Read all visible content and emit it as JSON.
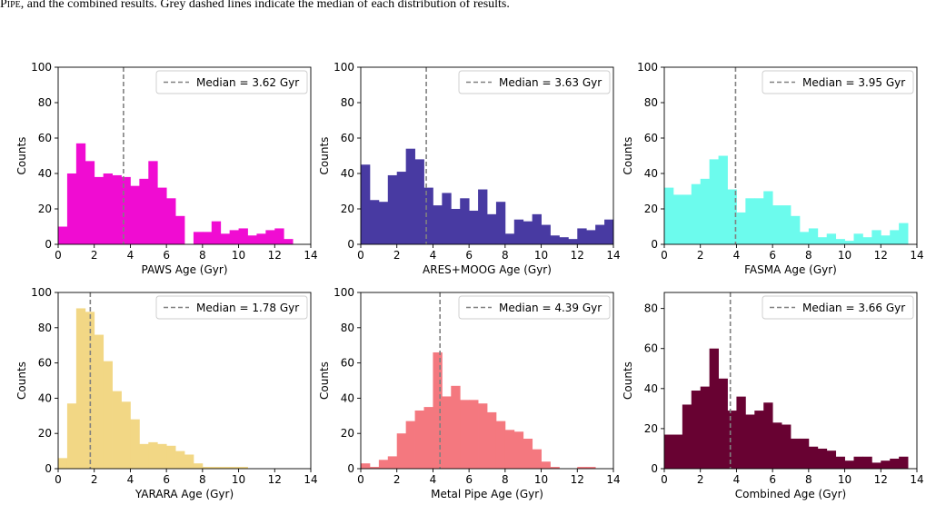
{
  "caption": {
    "lead": "Pipe",
    "rest": ", and the combined results. Grey dashed lines indicate the median of each distribution of results."
  },
  "chart_data": [
    {
      "type": "bar",
      "xlabel": "PAWS Age (Gyr)",
      "ylabel": "Counts",
      "color": "#f00cd2",
      "xlim": [
        0,
        14
      ],
      "ylim": [
        0,
        100
      ],
      "xticks": [
        "0",
        "2",
        "4",
        "6",
        "8",
        "10",
        "12",
        "14"
      ],
      "yticks": [
        "0",
        "20",
        "40",
        "60",
        "80",
        "100"
      ],
      "bin_width": 0.5,
      "bin_start": 0,
      "values": [
        10,
        40,
        57,
        47,
        38,
        40,
        39,
        38,
        33,
        37,
        47,
        32,
        26,
        16,
        0,
        7,
        7,
        13,
        6,
        8,
        9,
        5,
        6,
        8,
        9,
        3
      ],
      "median": 3.62,
      "legend": "Median = 3.62 Gyr"
    },
    {
      "type": "bar",
      "xlabel": "ARES+MOOG Age (Gyr)",
      "ylabel": "Counts",
      "color": "#483aa2",
      "xlim": [
        0,
        14
      ],
      "ylim": [
        0,
        100
      ],
      "xticks": [
        "0",
        "2",
        "4",
        "6",
        "8",
        "10",
        "12",
        "14"
      ],
      "yticks": [
        "0",
        "20",
        "40",
        "60",
        "80",
        "100"
      ],
      "bin_width": 0.5,
      "bin_start": 0,
      "values": [
        45,
        25,
        24,
        39,
        41,
        54,
        48,
        32,
        22,
        29,
        20,
        26,
        19,
        31,
        17,
        24,
        6,
        14,
        13,
        17,
        11,
        5,
        4,
        3,
        9,
        8,
        11,
        14
      ],
      "median": 3.63,
      "legend": "Median = 3.63 Gyr"
    },
    {
      "type": "bar",
      "xlabel": "FASMA Age (Gyr)",
      "ylabel": "Counts",
      "color": "#6cfbed",
      "xlim": [
        0,
        14
      ],
      "ylim": [
        0,
        100
      ],
      "xticks": [
        "0",
        "2",
        "4",
        "6",
        "8",
        "10",
        "12",
        "14"
      ],
      "yticks": [
        "0",
        "20",
        "40",
        "60",
        "80",
        "100"
      ],
      "bin_width": 0.5,
      "bin_start": 0,
      "values": [
        32,
        28,
        28,
        34,
        37,
        48,
        50,
        31,
        18,
        26,
        26,
        30,
        22,
        22,
        16,
        7,
        9,
        4,
        6,
        3,
        2,
        6,
        4,
        8,
        5,
        8,
        12
      ],
      "median": 3.95,
      "legend": "Median = 3.95 Gyr"
    },
    {
      "type": "bar",
      "xlabel": "YARARA Age (Gyr)",
      "ylabel": "Counts",
      "color": "#f2d785",
      "xlim": [
        0,
        14
      ],
      "ylim": [
        0,
        100
      ],
      "xticks": [
        "0",
        "2",
        "4",
        "6",
        "8",
        "10",
        "12",
        "14"
      ],
      "yticks": [
        "0",
        "20",
        "40",
        "60",
        "80",
        "100"
      ],
      "bin_width": 0.5,
      "bin_start": 0,
      "values": [
        6,
        37,
        91,
        89,
        76,
        61,
        44,
        38,
        28,
        14,
        15,
        14,
        13,
        10,
        8,
        3,
        1,
        1,
        1,
        1,
        1,
        0,
        0,
        0,
        0,
        0,
        0,
        0
      ],
      "median": 1.78,
      "legend": "Median = 1.78 Gyr"
    },
    {
      "type": "bar",
      "xlabel": "Metal Pipe Age (Gyr)",
      "ylabel": "Counts",
      "color": "#f4787f",
      "xlim": [
        0,
        14
      ],
      "ylim": [
        0,
        100
      ],
      "xticks": [
        "0",
        "2",
        "4",
        "6",
        "8",
        "10",
        "12",
        "14"
      ],
      "yticks": [
        "0",
        "20",
        "40",
        "60",
        "80",
        "100"
      ],
      "bin_width": 0.5,
      "bin_start": 0,
      "values": [
        3,
        1,
        5,
        7,
        20,
        27,
        33,
        35,
        66,
        41,
        47,
        39,
        39,
        37,
        32,
        27,
        22,
        21,
        17,
        11,
        4,
        1,
        0,
        0,
        1,
        1
      ],
      "median": 4.39,
      "legend": "Median = 4.39 Gyr"
    },
    {
      "type": "bar",
      "xlabel": "Combined Age (Gyr)",
      "ylabel": "Counts",
      "color": "#680232",
      "xlim": [
        0,
        14
      ],
      "ylim": [
        0,
        88
      ],
      "xticks": [
        "0",
        "2",
        "4",
        "6",
        "8",
        "10",
        "12",
        "14"
      ],
      "yticks": [
        "0",
        "20",
        "40",
        "60",
        "80"
      ],
      "bin_width": 0.5,
      "bin_start": 0,
      "values": [
        17,
        17,
        32,
        39,
        41,
        60,
        45,
        29,
        36,
        27,
        29,
        33,
        23,
        22,
        15,
        15,
        11,
        10,
        9,
        6,
        4,
        6,
        6,
        3,
        4,
        5,
        6
      ],
      "median": 3.66,
      "legend": "Median = 3.66 Gyr"
    }
  ]
}
